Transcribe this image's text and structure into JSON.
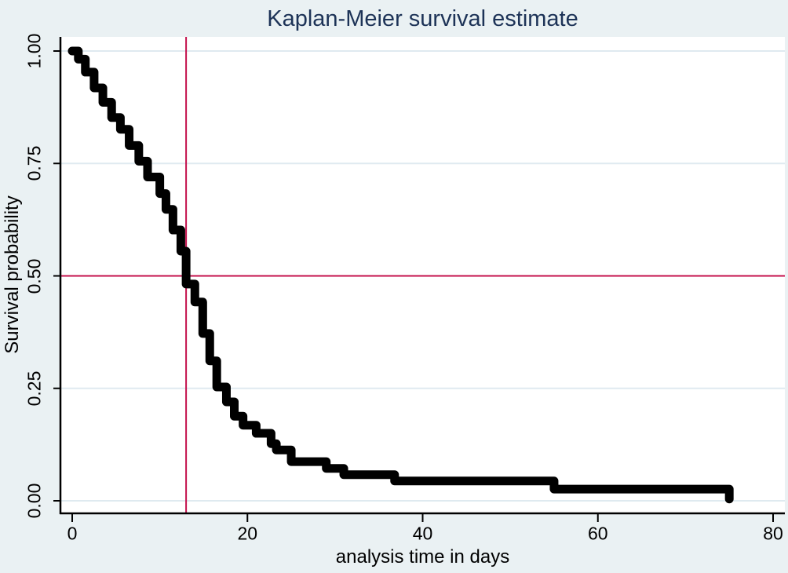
{
  "colors": {
    "outer_background": "#eaf1f3",
    "plot_background": "#ffffff",
    "gridline": "#dfeaf0",
    "reference_line": "#c4104c",
    "curve": "#000000",
    "title_text": "#1d3357",
    "axis": "#000000",
    "tick_text": "#000000"
  },
  "chart_data": {
    "type": "line",
    "subtype": "kaplan-meier-step-function",
    "title": "Kaplan-Meier survival estimate",
    "xlabel": "analysis time in days",
    "ylabel": "Survival probability",
    "xlim": [
      0,
      80
    ],
    "ylim": [
      0,
      1
    ],
    "grid": "horizontal-only",
    "legend": "none",
    "x_ticks": [
      0,
      20,
      40,
      60,
      80
    ],
    "x_tick_labels": [
      "0",
      "20",
      "40",
      "60",
      "80"
    ],
    "y_ticks": [
      0.0,
      0.25,
      0.5,
      0.75,
      1.0
    ],
    "y_tick_labels": [
      "0.00",
      "0.25",
      "0.50",
      "0.75",
      "1.00"
    ],
    "reference_lines": {
      "horizontal_at_survival": 0.5,
      "vertical_at_time": 13,
      "meaning": "median survival crosshair"
    },
    "median_survival_days": 13,
    "series": [
      {
        "name": "Kaplan-Meier survival estimate",
        "color": "#000000",
        "line_width": 11,
        "steps_time_survival": [
          [
            0,
            1.0
          ],
          [
            0.7,
            0.982
          ],
          [
            1.5,
            0.953
          ],
          [
            2.5,
            0.918
          ],
          [
            3.5,
            0.886
          ],
          [
            4.5,
            0.852
          ],
          [
            5.5,
            0.826
          ],
          [
            6.5,
            0.79
          ],
          [
            7.6,
            0.755
          ],
          [
            8.6,
            0.72
          ],
          [
            10,
            0.683
          ],
          [
            10.7,
            0.648
          ],
          [
            11.5,
            0.602
          ],
          [
            12.4,
            0.555
          ],
          [
            13,
            0.482
          ],
          [
            14,
            0.442
          ],
          [
            14.9,
            0.372
          ],
          [
            15.7,
            0.311
          ],
          [
            16.5,
            0.253
          ],
          [
            17.6,
            0.22
          ],
          [
            18.5,
            0.188
          ],
          [
            19.5,
            0.168
          ],
          [
            21,
            0.15
          ],
          [
            22.7,
            0.127
          ],
          [
            23.3,
            0.113
          ],
          [
            25,
            0.087
          ],
          [
            29,
            0.072
          ],
          [
            31,
            0.058
          ],
          [
            36.8,
            0.044
          ],
          [
            55,
            0.026
          ],
          [
            75,
            0.004
          ]
        ]
      }
    ]
  }
}
